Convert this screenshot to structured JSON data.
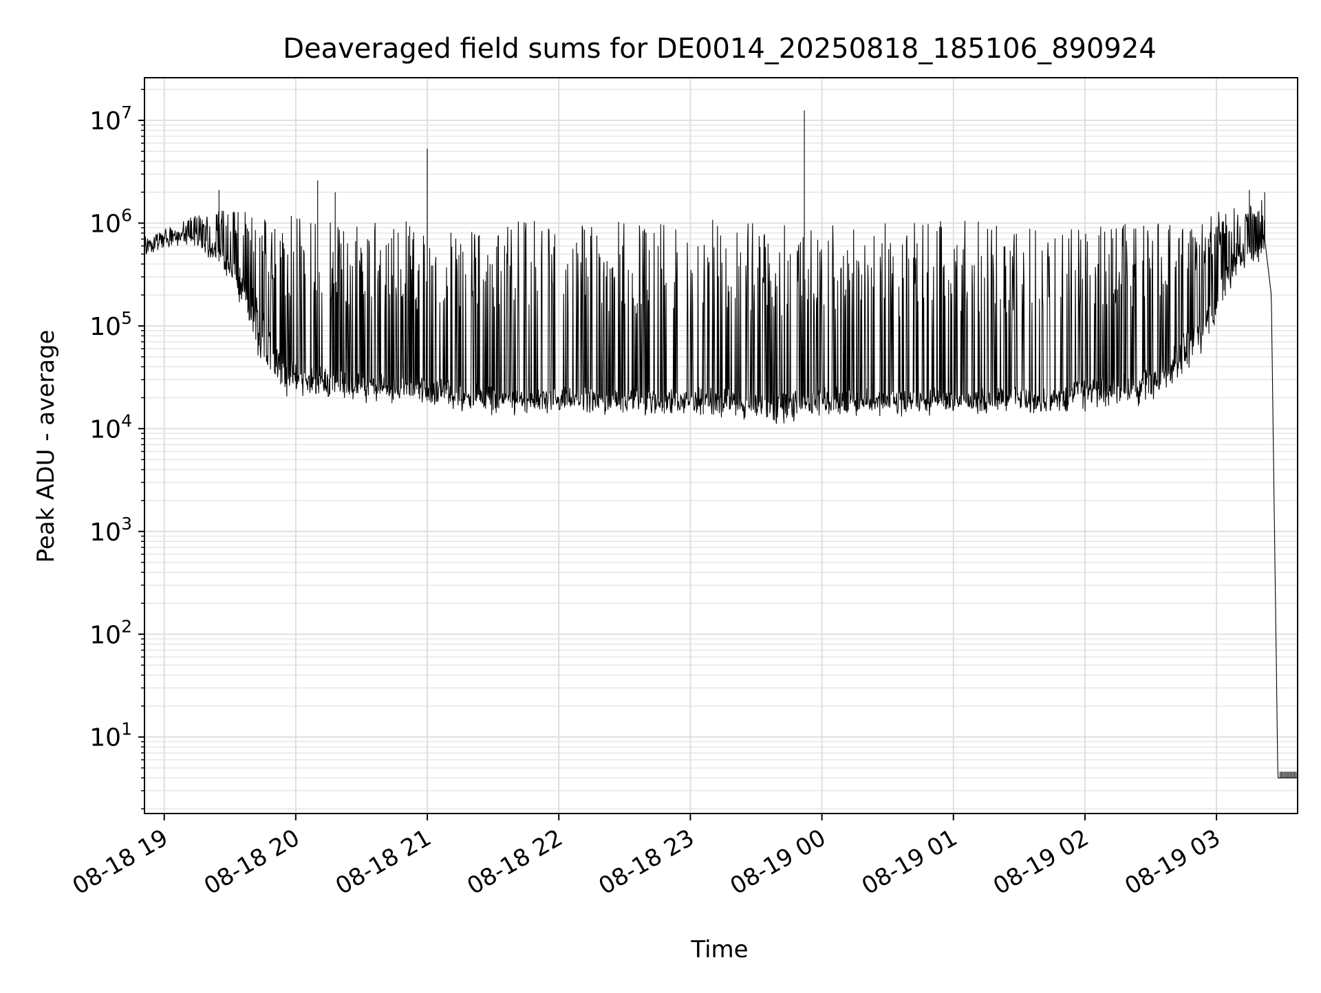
{
  "chart_data": {
    "type": "line",
    "title": "Deaveraged field sums for DE0014_20250818_185106_890924",
    "xlabel": "Time",
    "ylabel": "Peak ADU - average",
    "y_scale": "log",
    "ylim": [
      1.8,
      26000000
    ],
    "xlim": [
      "2025-08-18 18:51",
      "2025-08-19 03:37"
    ],
    "x_ticks": [
      "08-18 19",
      "08-18 20",
      "08-18 21",
      "08-18 22",
      "08-18 23",
      "08-19 00",
      "08-19 01",
      "08-19 02",
      "08-19 03"
    ],
    "y_ticks": [
      {
        "base": "10",
        "exp": "1",
        "value": 10
      },
      {
        "base": "10",
        "exp": "2",
        "value": 100
      },
      {
        "base": "10",
        "exp": "3",
        "value": 1000
      },
      {
        "base": "10",
        "exp": "4",
        "value": 10000
      },
      {
        "base": "10",
        "exp": "5",
        "value": 100000
      },
      {
        "base": "10",
        "exp": "6",
        "value": 1000000
      },
      {
        "base": "10",
        "exp": "7",
        "value": 10000000
      }
    ],
    "grid": true,
    "line_color": "#000000",
    "series": [
      {
        "name": "",
        "x": [
          "2025-08-18 18:51",
          "2025-08-18 19:00",
          "2025-08-18 19:15",
          "2025-08-18 19:30",
          "2025-08-18 19:45",
          "2025-08-18 19:55",
          "2025-08-18 20:15",
          "2025-08-18 20:40",
          "2025-08-18 21:00",
          "2025-08-18 21:20",
          "2025-08-18 21:45",
          "2025-08-18 22:15",
          "2025-08-18 22:45",
          "2025-08-18 23:15",
          "2025-08-18 23:40",
          "2025-08-18 23:53",
          "2025-08-19 00:05",
          "2025-08-19 00:40",
          "2025-08-19 01:10",
          "2025-08-19 01:50",
          "2025-08-19 02:30",
          "2025-08-19 02:50",
          "2025-08-19 03:10",
          "2025-08-19 03:22",
          "2025-08-19 03:25",
          "2025-08-19 03:28",
          "2025-08-19 03:37"
        ],
        "y": [
          550000,
          700000,
          750000,
          450000,
          150000,
          40000,
          35000,
          30000,
          28000,
          25000,
          22000,
          22000,
          22000,
          22000,
          20000,
          21000,
          22000,
          22000,
          22000,
          25000,
          35000,
          100000,
          600000,
          700000,
          200000,
          4,
          4
        ],
        "y_band_low": [
          550000,
          700000,
          700000,
          300000,
          40000,
          22000,
          20000,
          18000,
          18000,
          15000,
          15000,
          15000,
          15000,
          14000,
          12000,
          14000,
          14000,
          15000,
          15000,
          15000,
          18000,
          40000,
          350000,
          500000,
          200000,
          4,
          4
        ],
        "y_band_high": [
          750000,
          900000,
          1200000,
          1400000,
          1200000,
          1200000,
          1100000,
          1000000,
          1100000,
          1000000,
          1100000,
          1000000,
          1100000,
          1100000,
          1000000,
          1100000,
          1000000,
          1000000,
          1100000,
          1000000,
          1000000,
          1100000,
          1500000,
          1700000,
          300000,
          4,
          4
        ],
        "spikes": [
          {
            "x": "2025-08-18 19:25",
            "y": 2100000
          },
          {
            "x": "2025-08-18 20:10",
            "y": 2600000
          },
          {
            "x": "2025-08-18 20:18",
            "y": 2000000
          },
          {
            "x": "2025-08-18 21:00",
            "y": 5300000
          },
          {
            "x": "2025-08-18 23:52",
            "y": 12500000
          },
          {
            "x": "2025-08-19 03:15",
            "y": 2100000
          },
          {
            "x": "2025-08-19 03:22",
            "y": 2000000
          }
        ]
      }
    ]
  }
}
